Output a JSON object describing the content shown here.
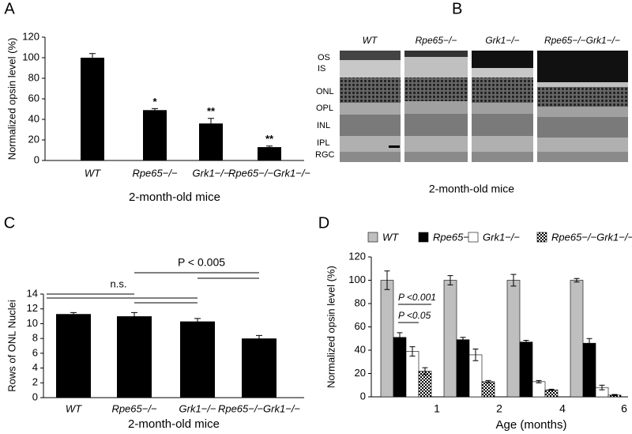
{
  "chart_data": [
    {
      "type": "bar",
      "panel_label": "A",
      "ylabel": "Normalized opsin level (%)",
      "xlabel": "2-month-old mice",
      "categories": [
        "WT",
        "Rpe65−/−",
        "Grk1−/−",
        "Rpe65−/−Grk1−/−"
      ],
      "values": [
        100,
        49,
        36,
        13
      ],
      "errors": [
        4,
        1.5,
        5,
        1
      ],
      "color": "#000000",
      "value_annotations": [
        null,
        "*",
        "**",
        "**"
      ],
      "ylim": [
        0,
        120
      ],
      "yticks": [
        0,
        20,
        40,
        60,
        80,
        100,
        120
      ]
    },
    {
      "type": "bar",
      "panel_label": "C",
      "ylabel": "Rows of ONL Nuclei",
      "xlabel": "2-month-old mice",
      "categories": [
        "WT",
        "Rpe65−/−",
        "Grk1−/−",
        "Rpe65−/−Grk1−/−"
      ],
      "values": [
        11.3,
        11.0,
        10.3,
        8.0
      ],
      "errors": [
        0.2,
        0.5,
        0.4,
        0.4
      ],
      "color": "#000000",
      "annotations": [
        "n.s.",
        "P < 0.005"
      ],
      "ylim": [
        0,
        14
      ],
      "yticks": [
        0,
        2,
        4,
        6,
        8,
        10,
        12,
        14
      ]
    },
    {
      "type": "grouped_bar",
      "panel_label": "D",
      "ylabel": "Normalized opsin level (%)",
      "xlabel": "Age (months)",
      "categories": [
        "1",
        "2",
        "4",
        "6"
      ],
      "series": [
        {
          "name": "WT",
          "color": "#bfbfbf",
          "values": [
            100,
            100,
            100,
            100
          ],
          "errors": [
            8,
            4,
            5,
            1.5
          ]
        },
        {
          "name": "Rpe65−/−",
          "color": "#000000",
          "values": [
            51,
            49,
            47,
            46
          ],
          "errors": [
            4,
            2,
            1.5,
            4
          ]
        },
        {
          "name": "Grk1−/−",
          "color": "#ffffff",
          "values": [
            39,
            36,
            13,
            8
          ],
          "errors": [
            4,
            5,
            1,
            2
          ]
        },
        {
          "name": "Rpe65−/−Grk1−/−",
          "color": "#000000",
          "pattern": "checker",
          "values": [
            22,
            13,
            6,
            1.5
          ],
          "errors": [
            3,
            1,
            0.5,
            0.5
          ]
        }
      ],
      "annotations": [
        "P <0.001",
        "P <0.05"
      ],
      "ylim": [
        0,
        120
      ],
      "yticks": [
        0,
        20,
        40,
        60,
        80,
        100,
        120
      ],
      "legend": "top"
    }
  ],
  "image_panel": {
    "panel_label": "B",
    "columns": [
      "WT",
      "Rpe65−/−",
      "Grk1−/−",
      "Rpe65−/−Grk1−/−"
    ],
    "layers": [
      "OS",
      "IS",
      "ONL",
      "OPL",
      "INL",
      "IPL",
      "RGC"
    ],
    "caption": "2-month-old mice"
  }
}
